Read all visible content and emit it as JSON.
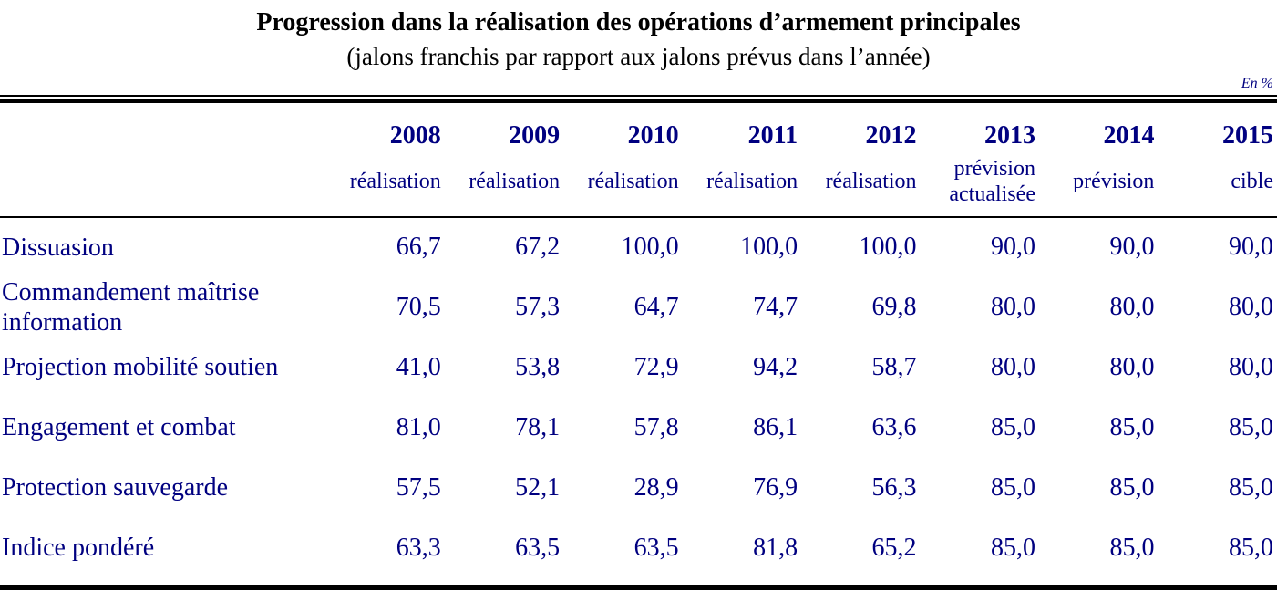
{
  "title": "Progression dans la réalisation des opérations d’armement principales",
  "subtitle": "(jalons franchis par rapport aux jalons prévus dans l’année)",
  "unit_note": "En %",
  "colors": {
    "text_navy": "#000080",
    "title_black": "#000000",
    "rule_black": "#000000",
    "background": "#ffffff"
  },
  "table": {
    "columns": [
      {
        "year": "2008",
        "type": "réalisation"
      },
      {
        "year": "2009",
        "type": "réalisation"
      },
      {
        "year": "2010",
        "type": "réalisation"
      },
      {
        "year": "2011",
        "type": "réalisation"
      },
      {
        "year": "2012",
        "type": "réalisation"
      },
      {
        "year": "2013",
        "type": "prévision actualisée"
      },
      {
        "year": "2014",
        "type": "prévision"
      },
      {
        "year": "2015",
        "type": "cible"
      }
    ],
    "rows": [
      {
        "label": "Dissuasion",
        "values": [
          "66,7",
          "67,2",
          "100,0",
          "100,0",
          "100,0",
          "90,0",
          "90,0",
          "90,0"
        ]
      },
      {
        "label": "Commandement maîtrise information",
        "values": [
          "70,5",
          "57,3",
          "64,7",
          "74,7",
          "69,8",
          "80,0",
          "80,0",
          "80,0"
        ]
      },
      {
        "label": "Projection mobilité soutien",
        "values": [
          "41,0",
          "53,8",
          "72,9",
          "94,2",
          "58,7",
          "80,0",
          "80,0",
          "80,0"
        ]
      },
      {
        "label": "Engagement et combat",
        "values": [
          "81,0",
          "78,1",
          "57,8",
          "86,1",
          "63,6",
          "85,0",
          "85,0",
          "85,0"
        ]
      },
      {
        "label": "Protection sauvegarde",
        "values": [
          "57,5",
          "52,1",
          "28,9",
          "76,9",
          "56,3",
          "85,0",
          "85,0",
          "85,0"
        ]
      },
      {
        "label": "Indice pondéré",
        "values": [
          "63,3",
          "63,5",
          "63,5",
          "81,8",
          "65,2",
          "85,0",
          "85,0",
          "85,0"
        ]
      }
    ]
  }
}
